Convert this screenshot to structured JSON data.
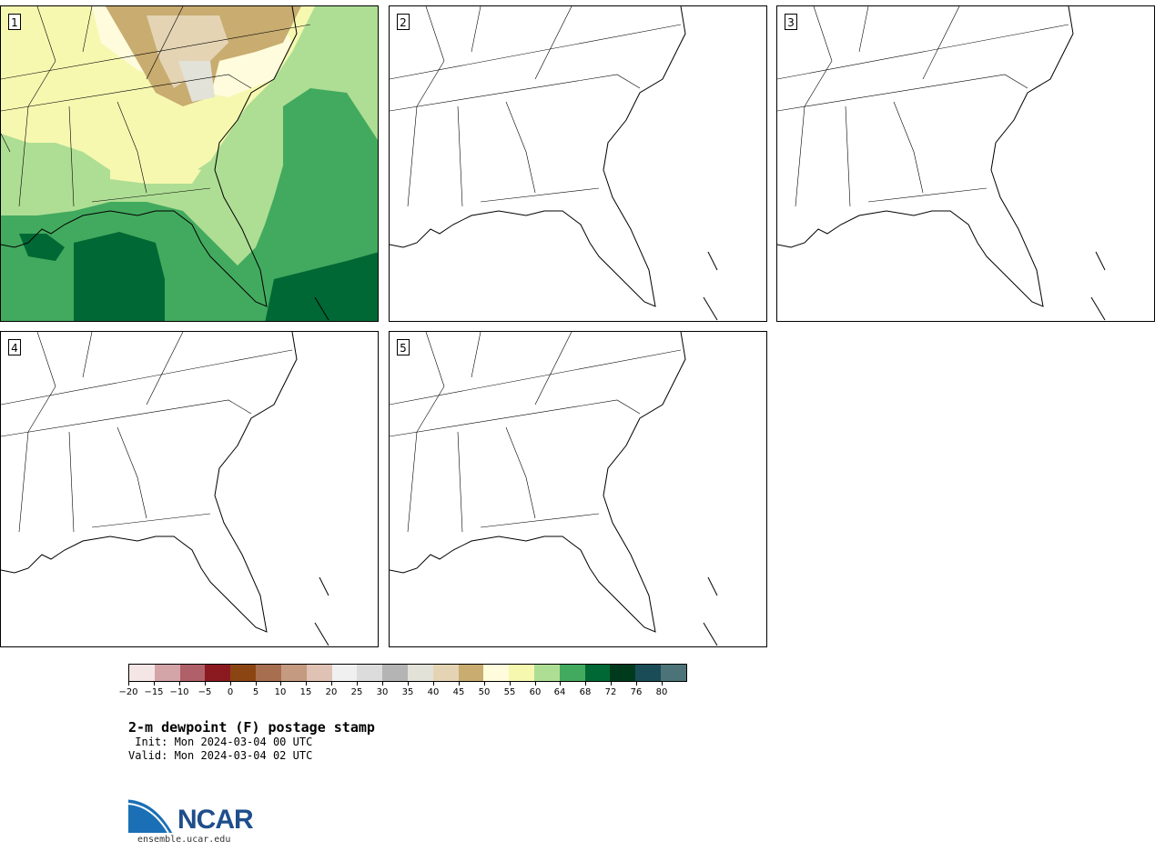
{
  "panels": [
    {
      "label": "1",
      "filled": true
    },
    {
      "label": "2",
      "filled": false
    },
    {
      "label": "3",
      "filled": false
    },
    {
      "label": "4",
      "filled": false
    },
    {
      "label": "5",
      "filled": false
    }
  ],
  "colorbar": {
    "colors": [
      "#f5e6e6",
      "#d4a5a8",
      "#b06068",
      "#8b1a20",
      "#8b4513",
      "#a86e50",
      "#c49a80",
      "#e0c2b4",
      "#f0f0f0",
      "#dcdcdc",
      "#b4b4b4",
      "#e2e2d8",
      "#e4d4b4",
      "#c8ac70",
      "#fefcdc",
      "#f6f8b0",
      "#aede94",
      "#42aa5e",
      "#006834",
      "#003a1c",
      "#1a4c58",
      "#4c7478"
    ],
    "tick_labels": [
      "−20",
      "−15",
      "−10",
      "−5",
      "0",
      "5",
      "10",
      "15",
      "20",
      "25",
      "30",
      "35",
      "40",
      "45",
      "50",
      "55",
      "60",
      "64",
      "68",
      "72",
      "76",
      "80"
    ]
  },
  "title": "2-m dewpoint (F) postage stamp",
  "init": " Init: Mon 2024-03-04 00 UTC",
  "valid": "Valid: Mon 2024-03-04 02 UTC",
  "logo": {
    "name": "NCAR",
    "url": "ensemble.ucar.edu"
  }
}
